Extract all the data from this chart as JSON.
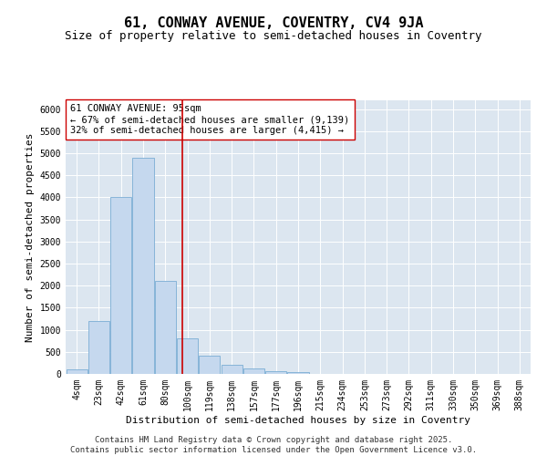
{
  "title": "61, CONWAY AVENUE, COVENTRY, CV4 9JA",
  "subtitle": "Size of property relative to semi-detached houses in Coventry",
  "xlabel": "Distribution of semi-detached houses by size in Coventry",
  "ylabel": "Number of semi-detached properties",
  "categories": [
    "4sqm",
    "23sqm",
    "42sqm",
    "61sqm",
    "80sqm",
    "100sqm",
    "119sqm",
    "138sqm",
    "157sqm",
    "177sqm",
    "196sqm",
    "215sqm",
    "234sqm",
    "253sqm",
    "273sqm",
    "292sqm",
    "311sqm",
    "330sqm",
    "350sqm",
    "369sqm",
    "388sqm"
  ],
  "values": [
    100,
    1200,
    4000,
    4900,
    2100,
    800,
    420,
    200,
    130,
    70,
    50,
    0,
    0,
    0,
    0,
    0,
    0,
    0,
    0,
    0,
    0
  ],
  "bar_color": "#c5d8ee",
  "bar_edge_color": "#7aadd4",
  "vline_color": "#cc0000",
  "vline_x": 4.75,
  "annotation_text": "61 CONWAY AVENUE: 95sqm\n← 67% of semi-detached houses are smaller (9,139)\n32% of semi-detached houses are larger (4,415) →",
  "annotation_box_facecolor": "#ffffff",
  "annotation_box_edgecolor": "#cc0000",
  "ylim": [
    0,
    6200
  ],
  "yticks": [
    0,
    500,
    1000,
    1500,
    2000,
    2500,
    3000,
    3500,
    4000,
    4500,
    5000,
    5500,
    6000
  ],
  "background_color": "#dce6f0",
  "footer_text": "Contains HM Land Registry data © Crown copyright and database right 2025.\nContains public sector information licensed under the Open Government Licence v3.0.",
  "title_fontsize": 11,
  "subtitle_fontsize": 9,
  "axis_label_fontsize": 8,
  "tick_fontsize": 7,
  "annotation_fontsize": 7.5,
  "footer_fontsize": 6.5
}
